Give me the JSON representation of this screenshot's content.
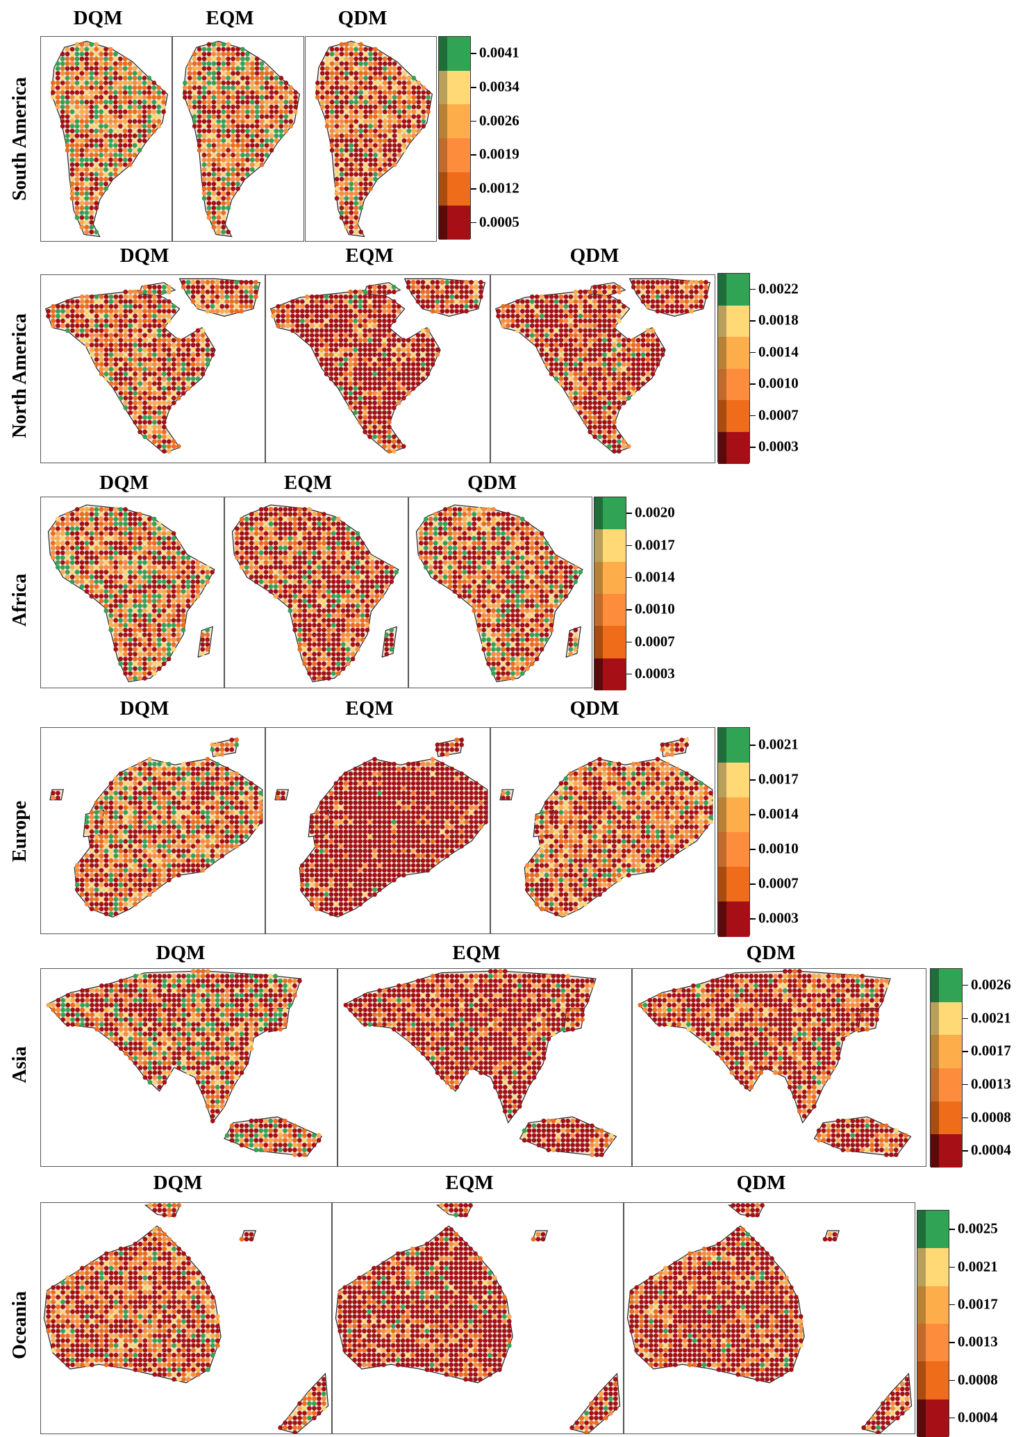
{
  "legend_colors": [
    "#a50f15",
    "#ef6c1a",
    "#fd8d3c",
    "#fdae4b",
    "#fed976",
    "#31a354"
  ],
  "legend_dark_colors": [
    "#5a0a0a",
    "#a84c10",
    "#c06a2c",
    "#b88236",
    "#b8a05a",
    "#1f6e3a"
  ],
  "regions": [
    {
      "name": "South America",
      "panels": [
        "DQM",
        "EQM",
        "QDM"
      ],
      "ticks": [
        "0.0041",
        "0.0034",
        "0.0026",
        "0.0019",
        "0.0012",
        "0.0005"
      ],
      "mixes": [
        [
          0.3,
          0.18,
          0.14,
          0.1,
          0.08,
          0.2
        ],
        [
          0.35,
          0.18,
          0.14,
          0.1,
          0.07,
          0.16
        ],
        [
          0.42,
          0.2,
          0.14,
          0.1,
          0.06,
          0.08
        ]
      ]
    },
    {
      "name": "North America",
      "panels": [
        "DQM",
        "EQM",
        "QDM"
      ],
      "ticks": [
        "0.0022",
        "0.0018",
        "0.0014",
        "0.0010",
        "0.0007",
        "0.0003"
      ],
      "mixes": [
        [
          0.45,
          0.18,
          0.12,
          0.09,
          0.06,
          0.1
        ],
        [
          0.72,
          0.12,
          0.07,
          0.04,
          0.02,
          0.03
        ],
        [
          0.62,
          0.15,
          0.1,
          0.06,
          0.03,
          0.04
        ]
      ]
    },
    {
      "name": "Africa",
      "panels": [
        "DQM",
        "EQM",
        "QDM"
      ],
      "ticks": [
        "0.0020",
        "0.0017",
        "0.0014",
        "0.0010",
        "0.0007",
        "0.0003"
      ],
      "mixes": [
        [
          0.32,
          0.18,
          0.15,
          0.1,
          0.07,
          0.18
        ],
        [
          0.55,
          0.15,
          0.11,
          0.07,
          0.04,
          0.08
        ],
        [
          0.4,
          0.18,
          0.14,
          0.1,
          0.06,
          0.12
        ]
      ]
    },
    {
      "name": "Europe",
      "panels": [
        "DQM",
        "EQM",
        "QDM"
      ],
      "ticks": [
        "0.0021",
        "0.0017",
        "0.0014",
        "0.0010",
        "0.0007",
        "0.0003"
      ],
      "mixes": [
        [
          0.35,
          0.2,
          0.15,
          0.1,
          0.07,
          0.13
        ],
        [
          0.85,
          0.07,
          0.04,
          0.02,
          0.01,
          0.01
        ],
        [
          0.42,
          0.2,
          0.15,
          0.1,
          0.07,
          0.06
        ]
      ]
    },
    {
      "name": "Asia",
      "panels": [
        "DQM",
        "EQM",
        "QDM"
      ],
      "ticks": [
        "0.0026",
        "0.0021",
        "0.0017",
        "0.0013",
        "0.0008",
        "0.0004"
      ],
      "mixes": [
        [
          0.45,
          0.16,
          0.11,
          0.08,
          0.05,
          0.15
        ],
        [
          0.68,
          0.13,
          0.08,
          0.05,
          0.03,
          0.03
        ],
        [
          0.58,
          0.16,
          0.11,
          0.07,
          0.04,
          0.04
        ]
      ]
    },
    {
      "name": "Oceania",
      "panels": [
        "DQM",
        "EQM",
        "QDM"
      ],
      "ticks": [
        "0.0025",
        "0.0021",
        "0.0017",
        "0.0013",
        "0.0008",
        "0.0004"
      ],
      "mixes": [
        [
          0.5,
          0.18,
          0.12,
          0.08,
          0.05,
          0.07
        ],
        [
          0.72,
          0.12,
          0.07,
          0.04,
          0.02,
          0.03
        ],
        [
          0.68,
          0.14,
          0.08,
          0.05,
          0.03,
          0.02
        ]
      ]
    }
  ]
}
